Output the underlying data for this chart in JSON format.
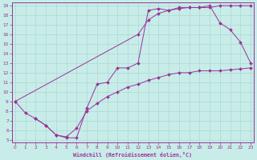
{
  "xlabel": "Windchill (Refroidissement éolien,°C)",
  "bg_color": "#c8ece8",
  "grid_color": "#aad8d4",
  "line_color": "#993399",
  "xmin": 0,
  "xmax": 23,
  "ymin": 5,
  "ymax": 19,
  "curveA_x": [
    0,
    1,
    2,
    3,
    4,
    5,
    6,
    7,
    8,
    9,
    10,
    11,
    12,
    13,
    14,
    15,
    16,
    17,
    18,
    19,
    20,
    21,
    22,
    23
  ],
  "curveA_y": [
    9.0,
    7.8,
    7.2,
    6.5,
    5.5,
    5.3,
    6.2,
    8.0,
    8.8,
    9.5,
    10.0,
    10.5,
    10.8,
    11.2,
    11.5,
    11.8,
    12.0,
    12.0,
    12.2,
    12.2,
    12.2,
    12.3,
    12.4,
    12.5
  ],
  "curveB_x": [
    0,
    12,
    13,
    14,
    15,
    16,
    17,
    18,
    19,
    20,
    21,
    22,
    23
  ],
  "curveB_y": [
    9.0,
    16.0,
    17.5,
    18.2,
    18.5,
    18.7,
    18.8,
    18.8,
    18.8,
    19.0,
    19.0,
    19.0,
    19.0
  ],
  "curveC_x": [
    2,
    3,
    4,
    5,
    6,
    7,
    8,
    9,
    10,
    11,
    12,
    13,
    14,
    15,
    16,
    17,
    18,
    19,
    20,
    21,
    22,
    23
  ],
  "curveC_y": [
    7.2,
    6.5,
    5.5,
    5.2,
    5.2,
    8.3,
    10.8,
    11.0,
    12.5,
    12.5,
    13.0,
    18.5,
    18.7,
    18.5,
    18.8,
    18.8,
    18.8,
    19.0,
    17.2,
    16.5,
    15.2,
    13.0
  ],
  "yticks": [
    5,
    6,
    7,
    8,
    9,
    10,
    11,
    12,
    13,
    14,
    15,
    16,
    17,
    18,
    19
  ],
  "xticks": [
    0,
    1,
    2,
    3,
    4,
    5,
    6,
    7,
    8,
    9,
    10,
    11,
    12,
    13,
    14,
    15,
    16,
    17,
    18,
    19,
    20,
    21,
    22,
    23
  ]
}
